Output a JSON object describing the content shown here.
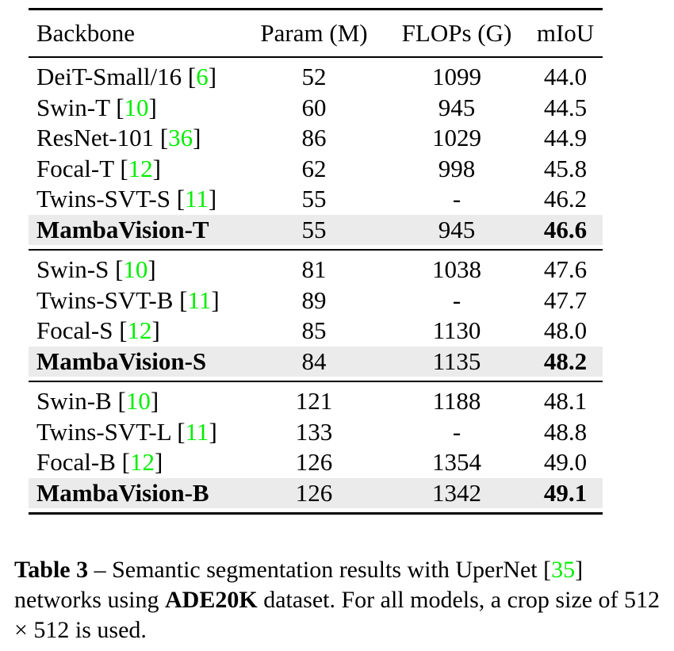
{
  "table": {
    "headers": [
      "Backbone",
      "Param (M)",
      "FLOPs (G)",
      "mIoU"
    ],
    "groups": [
      [
        {
          "name": "DeiT-Small/16",
          "ref": "6",
          "param": "52",
          "flops": "1099",
          "miou": "44.0"
        },
        {
          "name": "Swin-T",
          "ref": "10",
          "param": "60",
          "flops": "945",
          "miou": "44.5"
        },
        {
          "name": "ResNet-101",
          "ref": "36",
          "param": "86",
          "flops": "1029",
          "miou": "44.9"
        },
        {
          "name": "Focal-T",
          "ref": "12",
          "param": "62",
          "flops": "998",
          "miou": "45.8"
        },
        {
          "name": "Twins-SVT-S",
          "ref": "11",
          "param": "55",
          "flops": "-",
          "miou": "46.2"
        },
        {
          "name": "MambaVision-T",
          "ref": "",
          "param": "55",
          "flops": "945",
          "miou": "46.6",
          "highlight": true
        }
      ],
      [
        {
          "name": "Swin-S",
          "ref": "10",
          "param": "81",
          "flops": "1038",
          "miou": "47.6"
        },
        {
          "name": "Twins-SVT-B",
          "ref": "11",
          "param": "89",
          "flops": "-",
          "miou": "47.7"
        },
        {
          "name": "Focal-S",
          "ref": "12",
          "param": "85",
          "flops": "1130",
          "miou": "48.0"
        },
        {
          "name": "MambaVision-S",
          "ref": "",
          "param": "84",
          "flops": "1135",
          "miou": "48.2",
          "highlight": true
        }
      ],
      [
        {
          "name": "Swin-B",
          "ref": "10",
          "param": "121",
          "flops": "1188",
          "miou": "48.1"
        },
        {
          "name": "Twins-SVT-L",
          "ref": "11",
          "param": "133",
          "flops": "-",
          "miou": "48.8"
        },
        {
          "name": "Focal-B",
          "ref": "12",
          "param": "126",
          "flops": "1354",
          "miou": "49.0"
        },
        {
          "name": "MambaVision-B",
          "ref": "",
          "param": "126",
          "flops": "1342",
          "miou": "49.1",
          "highlight": true
        }
      ]
    ]
  },
  "caption": {
    "label": "Table 3",
    "dash": " – ",
    "part1": "Semantic segmentation results with UperNet [",
    "ref": "35",
    "part2": "] networks using ",
    "dataset": "ADE20K",
    "part3": " dataset. For all models, a crop size of 512 × 512 is used."
  }
}
